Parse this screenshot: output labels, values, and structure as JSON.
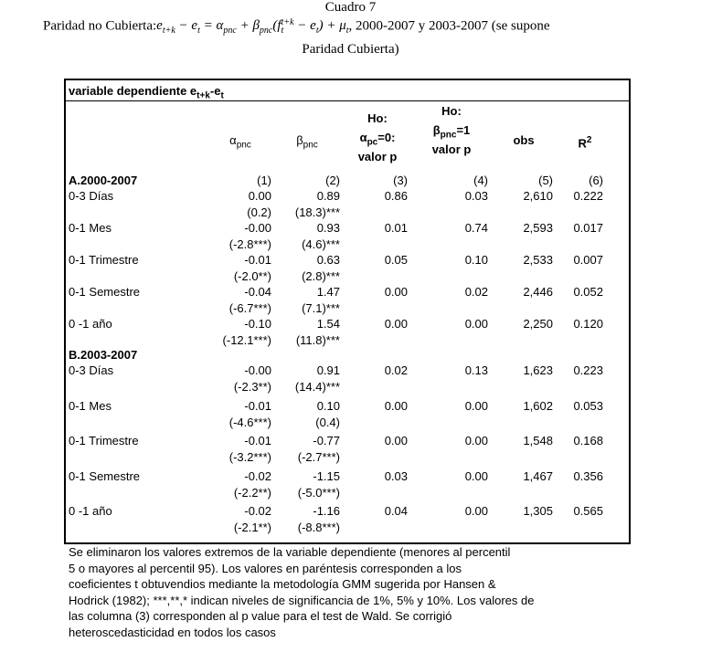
{
  "header": {
    "title": "Cuadro 7",
    "caption_prefix": "Paridad no Cubierta:",
    "formula": [
      {
        "t": "e",
        "sub": "t+k"
      },
      {
        "t": " − "
      },
      {
        "t": "e",
        "sub": "t"
      },
      {
        "t": " = "
      },
      {
        "t": "α",
        "sub": "pnc"
      },
      {
        "t": " + "
      },
      {
        "t": "β",
        "sub": "pnc"
      },
      {
        "t": "("
      },
      {
        "t": "f",
        "sub": "t",
        "sup": "t+k"
      },
      {
        "t": " − "
      },
      {
        "t": "e",
        "sub": "t"
      },
      {
        "t": ")"
      },
      {
        "t": " + "
      },
      {
        "t": "μ",
        "sub": "t"
      }
    ],
    "caption_suffix": ", 2000-2007 y 2003-2007 (se supone",
    "caption_line2": "Paridad Cubierta)"
  },
  "table": {
    "dependent": [
      {
        "t": "variable dependiente e",
        "sub": "t+k"
      },
      {
        "t": "-e",
        "sub": "t"
      }
    ],
    "columns": [
      [
        [
          {
            "t": "α",
            "sub": "pnc"
          }
        ]
      ],
      [
        [
          {
            "t": "β",
            "sub": "pnc"
          }
        ]
      ],
      [
        [
          {
            "t": "Ho:"
          }
        ],
        [
          {
            "t": "α",
            "sub": "pc"
          },
          {
            "t": "=0:"
          }
        ],
        [
          {
            "t": "valor p"
          }
        ]
      ],
      [
        [
          {
            "t": "Ho:"
          }
        ],
        [
          {
            "t": "β",
            "sub": "pnc"
          },
          {
            "t": "=1"
          }
        ],
        [
          {
            "t": "valor p"
          }
        ]
      ],
      [
        [
          {
            "t": "obs"
          }
        ]
      ],
      [
        [
          {
            "t": "R",
            "sup": "2"
          }
        ]
      ]
    ],
    "numbers": [
      "(1)",
      "(2)",
      "(3)",
      "(4)",
      "(5)",
      "(6)"
    ],
    "sections": [
      {
        "label": "A.2000-2007",
        "rows": [
          {
            "label": "0-3 Días",
            "values": [
              "0.00",
              "0.89",
              "0.86",
              "0.03",
              "2,610",
              "0.222"
            ],
            "t": [
              "(0.2)",
              "(18.3)***"
            ]
          },
          {
            "label": "0-1 Mes",
            "values": [
              "-0.00",
              "0.93",
              "0.01",
              "0.74",
              "2,593",
              "0.017"
            ],
            "t": [
              "(-2.8***)",
              "(4.6)***"
            ]
          },
          {
            "label": "0-1 Trimestre",
            "values": [
              "-0.01",
              "0.63",
              "0.05",
              "0.10",
              "2,533",
              "0.007"
            ],
            "t": [
              "(-2.0**)",
              "(2.8)***"
            ]
          },
          {
            "label": "0-1 Semestre",
            "values": [
              "-0.04",
              "1.47",
              "0.00",
              "0.02",
              "2,446",
              "0.052"
            ],
            "t": [
              "(-6.7***)",
              "(7.1)***"
            ]
          },
          {
            "label": "0 -1 año",
            "values": [
              "-0.10",
              "1.54",
              "0.00",
              "0.00",
              "2,250",
              "0.120"
            ],
            "t": [
              "(-12.1***)",
              "(11.8)***"
            ]
          }
        ]
      },
      {
        "label": "B.2003-2007",
        "rows": [
          {
            "label": "0-3 Días",
            "values": [
              "-0.00",
              "0.91",
              "0.02",
              "0.13",
              "1,623",
              "0.223"
            ],
            "t": [
              "(-2.3**)",
              "(14.4)***"
            ]
          },
          {
            "label": "0-1 Mes",
            "values": [
              "-0.01",
              "0.10",
              "0.00",
              "0.00",
              "1,602",
              "0.053"
            ],
            "t": [
              "(-4.6***)",
              "(0.4)"
            ]
          },
          {
            "label": "0-1 Trimestre",
            "values": [
              "-0.01",
              "-0.77",
              "0.00",
              "0.00",
              "1,548",
              "0.168"
            ],
            "t": [
              "(-3.2***)",
              "(-2.7***)"
            ]
          },
          {
            "label": "0-1 Semestre",
            "values": [
              "-0.02",
              "-1.15",
              "0.03",
              "0.00",
              "1,467",
              "0.356"
            ],
            "t": [
              "(-2.2**)",
              "(-5.0***)"
            ]
          },
          {
            "label": "0 -1 año",
            "values": [
              "-0.02",
              "-1.16",
              "0.04",
              "0.00",
              "1,305",
              "0.565"
            ],
            "t": [
              "(-2.1**)",
              "(-8.8***)"
            ]
          }
        ]
      }
    ]
  },
  "footnote": [
    "Se eliminaron los valores extremos de la variable dependiente (menores al percentil",
    "5 o mayores al percentil 95). Los valores en paréntesis corresponden a los",
    "coeficientes t obtuvendios mediante la metodología GMM sugerida por Hansen &",
    "Hodrick (1982); ***,**,* indican niveles de significancia de 1%, 5% y 10%. Los valores de",
    "las columna (3) corresponden al p value para el test de Wald. Se corrigió",
    "heteroscedasticidad en todos los casos"
  ]
}
